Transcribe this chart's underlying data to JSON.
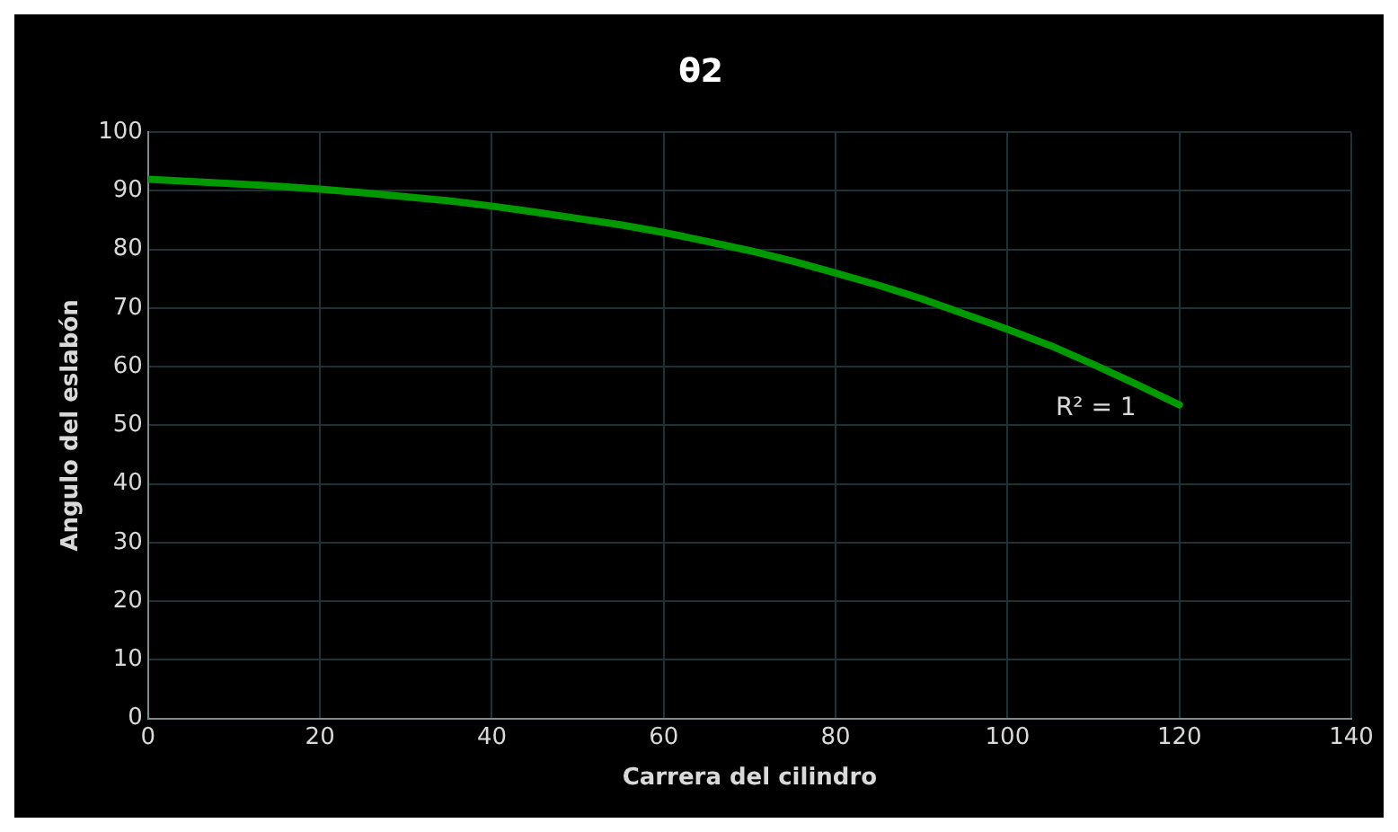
{
  "chart_data": {
    "type": "line",
    "title": "θ2",
    "xlabel": "Carrera del cilindro",
    "ylabel": "Angulo del eslabón",
    "x": [
      0,
      5,
      10,
      15,
      20,
      25,
      30,
      35,
      40,
      45,
      50,
      55,
      60,
      65,
      70,
      75,
      80,
      85,
      90,
      95,
      100,
      105,
      110,
      115,
      120
    ],
    "series": [
      {
        "color": "#009900",
        "values": [
          92,
          91.6,
          91.2,
          90.8,
          90.3,
          89.7,
          89,
          88.3,
          87.4,
          86.4,
          85.3,
          84.2,
          82.9,
          81.4,
          79.8,
          78,
          76,
          73.9,
          71.6,
          69,
          66.4,
          63.6,
          60.4,
          57,
          53.5
        ]
      }
    ],
    "xlim": [
      0,
      140
    ],
    "xticks": [
      0,
      20,
      40,
      60,
      80,
      100,
      120,
      140
    ],
    "ylim": [
      0,
      100
    ],
    "yticks": [
      0,
      10,
      20,
      30,
      40,
      50,
      60,
      70,
      80,
      90,
      100
    ],
    "grid": true,
    "marker": "none",
    "line_style": "solid",
    "legend": false,
    "annotations": [
      "R² = 1"
    ]
  }
}
